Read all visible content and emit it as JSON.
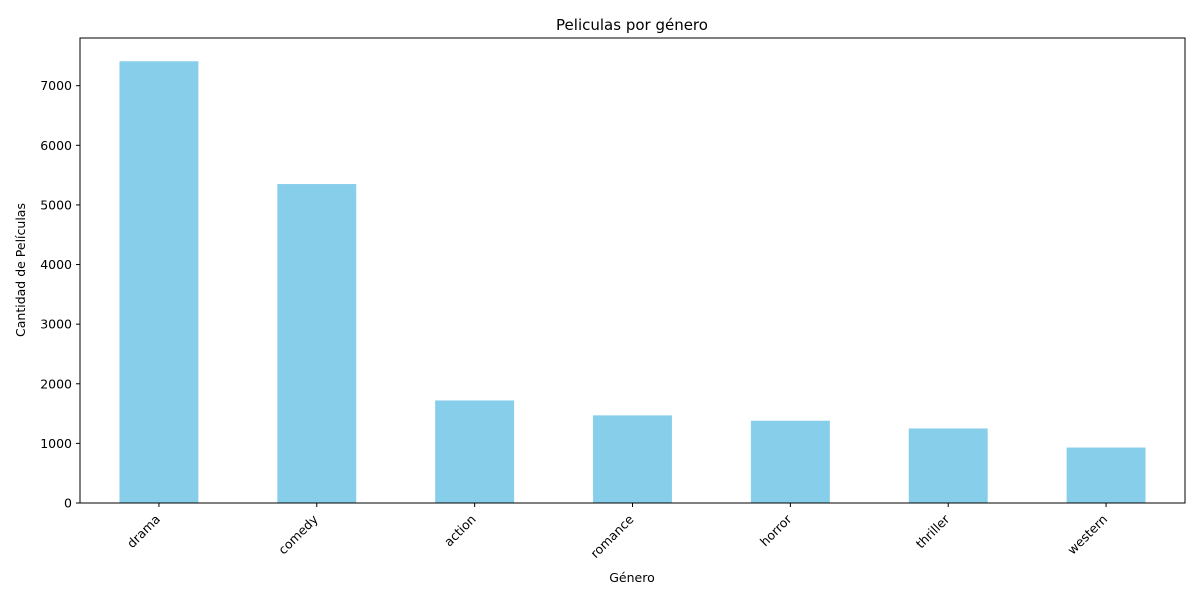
{
  "chart_data": {
    "type": "bar",
    "title": "Peliculas por género",
    "xlabel": "Género",
    "ylabel": "Cantidad de Películas",
    "categories": [
      "drama",
      "comedy",
      "action",
      "romance",
      "horror",
      "thriller",
      "western"
    ],
    "values": [
      7410,
      5350,
      1720,
      1470,
      1380,
      1250,
      930
    ],
    "ylim": [
      0,
      7800
    ],
    "yticks": [
      0,
      1000,
      2000,
      3000,
      4000,
      5000,
      6000,
      7000
    ],
    "bar_color": "#87ceeb",
    "grid": false,
    "legend": "none"
  }
}
